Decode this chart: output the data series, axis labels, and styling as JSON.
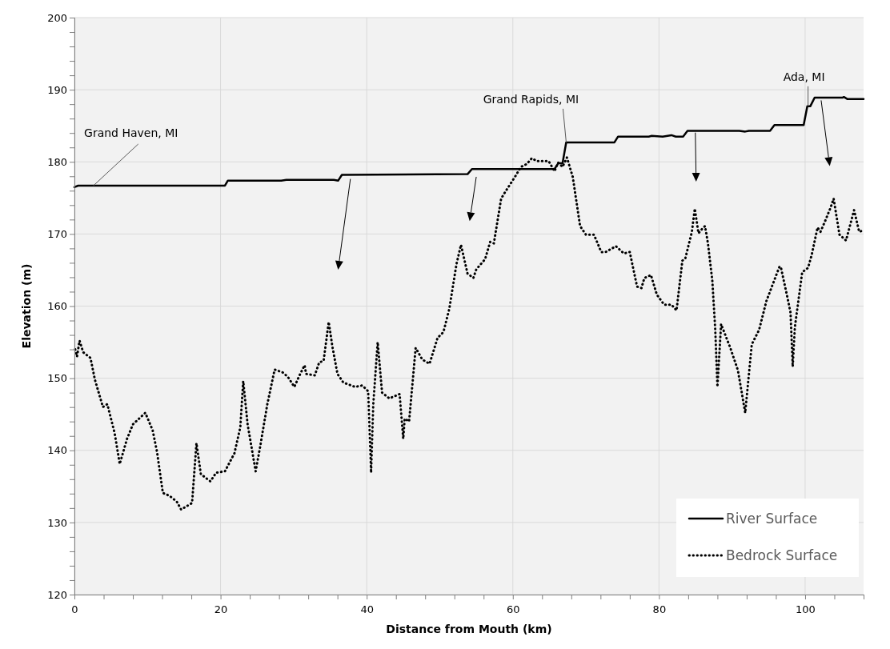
{
  "chart_data": {
    "type": "line",
    "xlabel": "Distance from Mouth (km)",
    "ylabel": "Elevation (m)",
    "xlim": [
      0,
      108
    ],
    "xticks": [
      0,
      {
        "value": 4,
        "label": null
      },
      {
        "value": 8,
        "label": null
      },
      {
        "value": 12,
        "label": null
      },
      {
        "value": 16,
        "label": null
      },
      20,
      {
        "value": 24,
        "label": null
      },
      {
        "value": 28,
        "label": null
      },
      {
        "value": 32,
        "label": null
      },
      {
        "value": 36,
        "label": null
      },
      40,
      {
        "value": 44,
        "label": null
      },
      {
        "value": 48,
        "label": null
      },
      {
        "value": 52,
        "label": null
      },
      {
        "value": 56,
        "label": null
      },
      60,
      {
        "value": 64,
        "label": null
      },
      {
        "value": 68,
        "label": null
      },
      {
        "value": 72,
        "label": null
      },
      {
        "value": 76,
        "label": null
      },
      80,
      {
        "value": 84,
        "label": null
      },
      {
        "value": 88,
        "label": null
      },
      {
        "value": 92,
        "label": null
      },
      {
        "value": 96,
        "label": null
      },
      100,
      {
        "value": 104,
        "label": null
      },
      {
        "value": 108,
        "label": null
      }
    ],
    "ylim": [
      120,
      200
    ],
    "yticks": [
      120,
      {
        "value": 122,
        "label": null
      },
      {
        "value": 124,
        "label": null
      },
      {
        "value": 126,
        "label": null
      },
      {
        "value": 128,
        "label": null
      },
      130,
      {
        "value": 132,
        "label": null
      },
      {
        "value": 134,
        "label": null
      },
      {
        "value": 136,
        "label": null
      },
      {
        "value": 138,
        "label": null
      },
      140,
      {
        "value": 142,
        "label": null
      },
      {
        "value": 144,
        "label": null
      },
      {
        "value": 146,
        "label": null
      },
      {
        "value": 148,
        "label": null
      },
      150,
      {
        "value": 152,
        "label": null
      },
      {
        "value": 154,
        "label": null
      },
      {
        "value": 156,
        "label": null
      },
      {
        "value": 158,
        "label": null
      },
      160,
      {
        "value": 162,
        "label": null
      },
      {
        "value": 164,
        "label": null
      },
      {
        "value": 166,
        "label": null
      },
      {
        "value": 168,
        "label": null
      },
      170,
      {
        "value": 172,
        "label": null
      },
      {
        "value": 174,
        "label": null
      },
      {
        "value": 176,
        "label": null
      },
      {
        "value": 178,
        "label": null
      },
      180,
      {
        "value": 182,
        "label": null
      },
      {
        "value": 184,
        "label": null
      },
      {
        "value": 186,
        "label": null
      },
      {
        "value": 188,
        "label": null
      },
      190,
      {
        "value": 192,
        "label": null
      },
      {
        "value": 194,
        "label": null
      },
      {
        "value": 196,
        "label": null
      },
      {
        "value": 198,
        "label": null
      },
      200
    ],
    "grid": true,
    "legend": "bottom right",
    "series": [
      {
        "name": "River Surface",
        "color": "#000000",
        "line_style": "solid",
        "x": [
          0,
          0.5,
          20.6,
          21,
          28.3,
          29,
          35.5,
          36.1,
          36.6,
          53.8,
          54.4,
          65.7,
          66.2,
          66.8,
          67.3,
          73.9,
          74.4,
          78.6,
          79,
          80.5,
          81.7,
          82.3,
          83.3,
          83.9,
          91,
          91.8,
          92.3,
          95.2,
          95.8,
          99.8,
          100.3,
          100.7,
          101.3,
          105.1,
          105.3,
          105.8,
          108
        ],
        "values": [
          176.5,
          176.7,
          176.7,
          177.4,
          177.4,
          177.5,
          177.5,
          177.4,
          178.2,
          178.3,
          179,
          179,
          179.8,
          179.8,
          182.7,
          182.7,
          183.5,
          183.5,
          183.6,
          183.5,
          183.7,
          183.5,
          183.5,
          184.3,
          184.3,
          184.2,
          184.3,
          184.3,
          185.1,
          185.1,
          187.7,
          187.7,
          188.9,
          188.9,
          189,
          188.7,
          188.7
        ]
      },
      {
        "name": "Bedrock Surface",
        "color": "#000000",
        "line_style": "dotted",
        "x": [
          0.1,
          0.35,
          0.7,
          1.2,
          2.2,
          2.8,
          3.9,
          4.5,
          5.5,
          6.2,
          7.2,
          8,
          9.7,
          10.7,
          11.3,
          12.1,
          13,
          14,
          14.6,
          16.1,
          16.7,
          17.3,
          18.6,
          19.4,
          20.6,
          21.9,
          22.7,
          23.1,
          23.7,
          24.8,
          25.4,
          26.4,
          27.4,
          28.5,
          29.2,
          30.1,
          30.8,
          31.5,
          31.7,
          32.9,
          33.5,
          34.1,
          34.8,
          35.3,
          36,
          36.8,
          38.4,
          39.4,
          40.2,
          40.6,
          40.9,
          41.5,
          42.1,
          43.1,
          44.5,
          45,
          45.2,
          45.8,
          46.7,
          47.6,
          48.6,
          49.7,
          50.5,
          51.3,
          52.3,
          52.9,
          53.8,
          54.6,
          55,
          56.2,
          56.9,
          57.4,
          58.4,
          59,
          60.4,
          61.1,
          61.9,
          62.6,
          63.3,
          64.9,
          65.7,
          66.2,
          66.8,
          67.4,
          68.2,
          69.2,
          70,
          71.1,
          72.1,
          72.7,
          74.1,
          75.2,
          76,
          77,
          77.6,
          78,
          78.9,
          79.7,
          80.7,
          81.7,
          82.4,
          83.2,
          83.6,
          84.5,
          84.9,
          85.4,
          85.9,
          86.3,
          86.7,
          87.3,
          87.7,
          88,
          88.5,
          89.8,
          90.8,
          91.8,
          92.7,
          93.7,
          94.7,
          96.5,
          96.7,
          97.6,
          98,
          98.3,
          98.6,
          99.6,
          100.4,
          100.9,
          101.7,
          102.1,
          102.7,
          103.5,
          103.9,
          104.7,
          105.6,
          106.7,
          107.4,
          108
        ],
        "values": [
          154,
          153,
          155.2,
          153.6,
          152.8,
          149.8,
          146,
          146.4,
          142.4,
          138.1,
          141.6,
          143.6,
          145.2,
          142.8,
          139.8,
          134.1,
          133.7,
          132.9,
          131.8,
          132.7,
          141,
          136.7,
          135.7,
          136.9,
          137.1,
          139.6,
          143.2,
          149.6,
          143.6,
          137.1,
          140.4,
          146.4,
          151.2,
          150.8,
          150.2,
          148.8,
          150.4,
          151.8,
          150.6,
          150.4,
          152.2,
          152.4,
          157.8,
          154.4,
          150.6,
          149.4,
          148.8,
          149,
          148.2,
          136.9,
          146.4,
          155,
          148,
          147.2,
          147.8,
          141.6,
          144.4,
          144,
          154.2,
          152.6,
          152,
          155.6,
          156.4,
          159.6,
          165.9,
          168.5,
          164.5,
          163.9,
          165.1,
          166.5,
          168.9,
          168.7,
          174.9,
          175.9,
          178.1,
          179.3,
          179.7,
          180.5,
          180.1,
          180.1,
          178.7,
          179.9,
          179.3,
          180.6,
          177.9,
          171.1,
          169.9,
          169.9,
          167.5,
          167.5,
          168.3,
          167.3,
          167.5,
          162.7,
          162.5,
          163.9,
          164.3,
          161.6,
          160.2,
          160.2,
          159.4,
          166.3,
          166.6,
          170.3,
          173.5,
          170.1,
          170.7,
          171.1,
          168.7,
          163.5,
          156.7,
          148.8,
          157.5,
          154.1,
          151.1,
          145.2,
          154.7,
          156.7,
          160.7,
          165.5,
          165.3,
          161.1,
          159.1,
          151.6,
          157.1,
          164.7,
          165.3,
          167.1,
          170.9,
          170.3,
          171.7,
          173.7,
          174.9,
          169.9,
          169.1,
          173.3,
          170.3,
          170.5
        ]
      }
    ],
    "annotations": [
      {
        "text": "Grand Haven, MI",
        "x": 2.6,
        "y": 176.7
      },
      {
        "text": "Grand Rapids, MI",
        "x": 67.3,
        "y": 182.7
      },
      {
        "text": "Ada, MI",
        "x": 100.4,
        "y": 187.7
      }
    ]
  }
}
